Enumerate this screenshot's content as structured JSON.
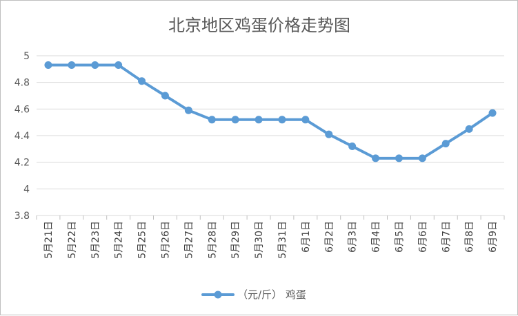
{
  "chart_data": {
    "type": "line",
    "title": "北京地区鸡蛋价格走势图",
    "categories": [
      "5月21日",
      "5月22日",
      "5月23日",
      "5月24日",
      "5月25日",
      "5月26日",
      "5月27日",
      "5月28日",
      "5月29日",
      "5月30日",
      "5月31日",
      "6月1日",
      "6月2日",
      "6月3日",
      "6月4日",
      "6月5日",
      "6月6日",
      "6月7日",
      "6月8日",
      "6月9日"
    ],
    "series": [
      {
        "name": "（元/斤） 鸡蛋",
        "values": [
          4.93,
          4.93,
          4.93,
          4.93,
          4.81,
          4.7,
          4.59,
          4.52,
          4.52,
          4.52,
          4.52,
          4.52,
          4.41,
          4.32,
          4.23,
          4.23,
          4.23,
          4.34,
          4.45,
          4.57
        ]
      }
    ],
    "ylim": [
      3.8,
      5.0
    ],
    "yticks": [
      "3.8",
      "4",
      "4.2",
      "4.4",
      "4.6",
      "4.8",
      "5"
    ],
    "xlabel": "",
    "ylabel": "",
    "grid": true,
    "legend_position": "bottom",
    "line_color": "#5b9bd5"
  }
}
